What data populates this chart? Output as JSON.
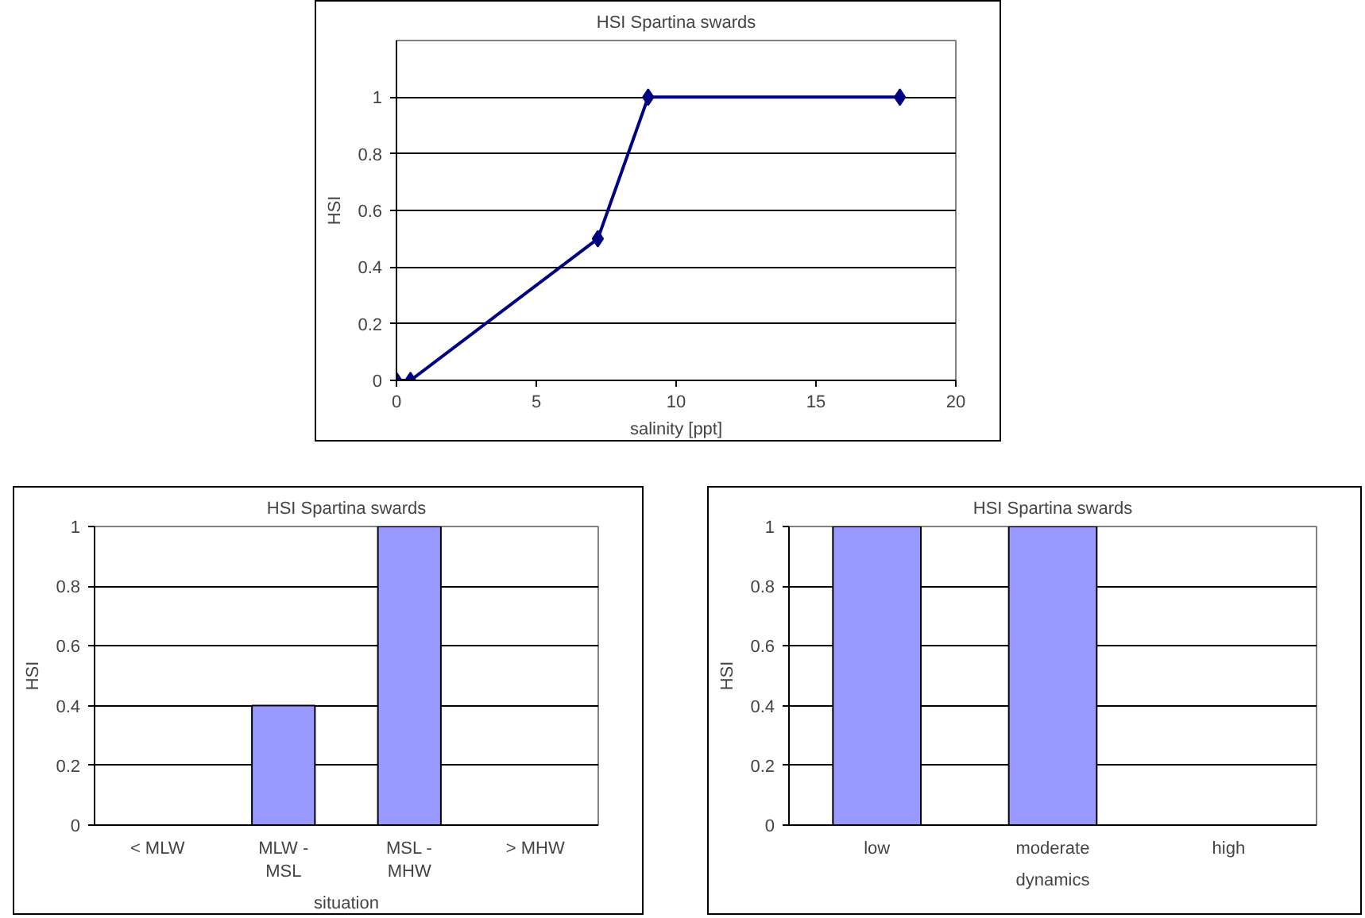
{
  "chart_data": [
    {
      "type": "line",
      "title": "HSI Spartina swards",
      "xlabel": "salinity [ppt]",
      "ylabel": "HSI",
      "x": [
        0,
        0.5,
        7.2,
        9,
        18
      ],
      "values": [
        0,
        0,
        0.5,
        1,
        1
      ],
      "color": "#000080",
      "marker": "diamond",
      "xlim": [
        0,
        20
      ],
      "xticks": [
        0,
        5,
        10,
        15,
        20
      ],
      "ylim": [
        0,
        1.2
      ],
      "yticks": [
        0,
        0.2,
        0.4,
        0.6,
        0.8,
        1
      ],
      "grid": "y"
    },
    {
      "type": "bar",
      "title": "HSI Spartina swards",
      "xlabel": "situation",
      "ylabel": "HSI",
      "categories": [
        "< MLW",
        "MLW - MSL",
        "MSL - MHW",
        "> MHW"
      ],
      "values": [
        0,
        0.4,
        1,
        0
      ],
      "color": "#9999ff",
      "ylim": [
        0,
        1
      ],
      "yticks": [
        0,
        0.2,
        0.4,
        0.6,
        0.8,
        1
      ],
      "grid": "y"
    },
    {
      "type": "bar",
      "title": "HSI Spartina swards",
      "xlabel": "dynamics",
      "ylabel": "HSI",
      "categories": [
        "low",
        "moderate",
        "high"
      ],
      "values": [
        1,
        1,
        0
      ],
      "color": "#9999ff",
      "ylim": [
        0,
        1
      ],
      "yticks": [
        0,
        0.2,
        0.4,
        0.6,
        0.8,
        1
      ],
      "grid": "y"
    }
  ]
}
